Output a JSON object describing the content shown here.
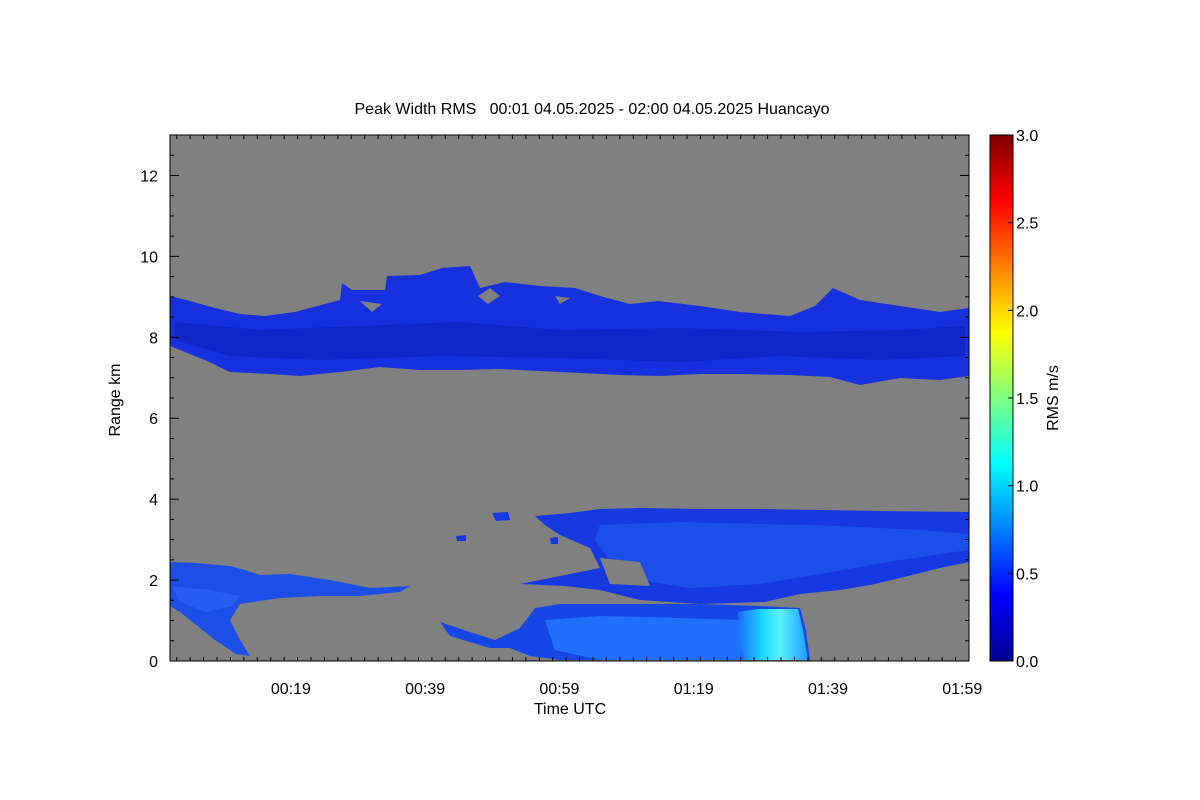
{
  "chart_data": {
    "type": "heatmap",
    "title": "Peak Width RMS   00:01 04.05.2025 - 02:00 04.05.2025 Huancayo",
    "xlabel": "Time UTC",
    "ylabel": "Range km",
    "xlim_minutes_utc": [
      1,
      120
    ],
    "ylim": [
      0,
      13
    ],
    "x_tick_labels": [
      "00:19",
      "00:39",
      "00:59",
      "01:19",
      "01:39",
      "01:59"
    ],
    "x_tick_minutes_utc": [
      19,
      39,
      59,
      79,
      99,
      119
    ],
    "y_ticks": [
      0,
      2,
      4,
      6,
      8,
      10,
      12
    ],
    "y_tick_labels": [
      "0",
      "2",
      "4",
      "6",
      "8",
      "10",
      "12"
    ],
    "colorbar": {
      "label": "RMS m/s",
      "range": [
        0.0,
        3.0
      ],
      "tick_labels": [
        "0.0",
        "0.5",
        "1.0",
        "1.5",
        "2.0",
        "2.5",
        "3.0"
      ],
      "ticks": [
        0.0,
        0.5,
        1.0,
        1.5,
        2.0,
        2.5,
        3.0
      ],
      "colormap": "jet"
    },
    "missing_color": "#808080",
    "features": [
      {
        "region": "upper cloud layer",
        "time_range": [
          "00:01",
          "02:00"
        ],
        "range_km": [
          7.0,
          9.7
        ],
        "rms_m_s": 0.25
      },
      {
        "region": "lower cloud layer",
        "time_range": [
          "00:46",
          "02:00"
        ],
        "range_km": [
          1.4,
          3.9
        ],
        "rms_m_s": 0.3
      },
      {
        "region": "low early patch",
        "time_range": [
          "00:01",
          "00:37"
        ],
        "range_km": [
          0.1,
          2.5
        ],
        "rms_m_s": 0.35
      },
      {
        "region": "near-surface layer",
        "time_range": [
          "00:55",
          "01:37"
        ],
        "range_km": [
          0.0,
          1.4
        ],
        "rms_m_s": 0.5
      },
      {
        "region": "high-RMS column",
        "time_range": [
          "01:28",
          "01:36"
        ],
        "range_km": [
          0.0,
          1.3
        ],
        "rms_m_s": 1.0
      }
    ]
  }
}
